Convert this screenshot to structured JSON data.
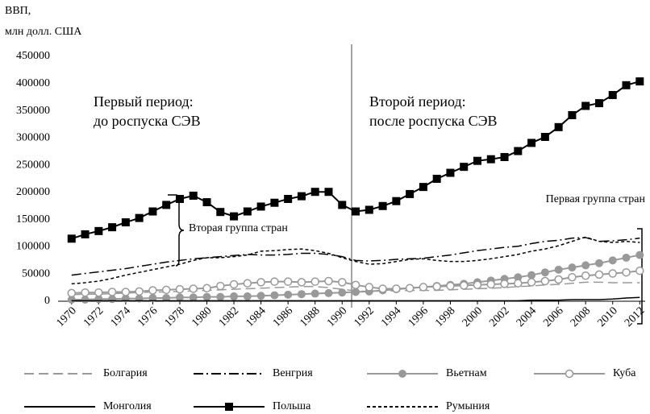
{
  "chart_data": {
    "type": "line",
    "ylabel": [
      "ВВП,",
      "млн долл. США"
    ],
    "x": [
      1970,
      1971,
      1972,
      1973,
      1974,
      1975,
      1976,
      1977,
      1978,
      1979,
      1980,
      1981,
      1982,
      1983,
      1984,
      1985,
      1986,
      1987,
      1988,
      1989,
      1990,
      1991,
      1992,
      1993,
      1994,
      1995,
      1996,
      1997,
      1998,
      1999,
      2000,
      2001,
      2002,
      2003,
      2004,
      2005,
      2006,
      2007,
      2008,
      2009,
      2010,
      2011,
      2012
    ],
    "xlim": [
      1969,
      2012.4
    ],
    "xticks": [
      1970,
      1972,
      1974,
      1976,
      1978,
      1980,
      1982,
      1984,
      1986,
      1988,
      1990,
      1992,
      1994,
      1996,
      1998,
      2000,
      2002,
      2004,
      2006,
      2008,
      2010,
      2012
    ],
    "ylim": [
      0,
      450000
    ],
    "yticks": [
      0,
      50000,
      100000,
      150000,
      200000,
      250000,
      300000,
      350000,
      400000,
      450000
    ],
    "grid": false,
    "legend": "bottom",
    "annotations": {
      "period1": [
        "Первый период:",
        "до роспуска СЭВ"
      ],
      "period2": [
        "Второй период:",
        "после роспуска СЭВ"
      ],
      "group2": "Вторая группа стран",
      "group1": "Первая группа стран"
    },
    "series": [
      {
        "name": "Болгария",
        "color": "#999999",
        "dash": "long",
        "marker": "none",
        "values": [
          12000,
          13000,
          13000,
          14000,
          15000,
          16000,
          17000,
          17000,
          18000,
          19000,
          20000,
          21000,
          22000,
          23000,
          24000,
          25000,
          26000,
          27000,
          27000,
          25000,
          22000,
          19000,
          18000,
          19000,
          19000,
          20000,
          20000,
          20000,
          21000,
          22000,
          23000,
          24000,
          25000,
          27000,
          28000,
          30000,
          31000,
          33000,
          35000,
          35000,
          34000,
          34000,
          34000
        ]
      },
      {
        "name": "Венгрия",
        "color": "#000000",
        "dash": "dashdot",
        "marker": "none",
        "values": [
          48000,
          51000,
          54000,
          57000,
          60000,
          64000,
          68000,
          72000,
          75000,
          78000,
          80000,
          82000,
          84000,
          86000,
          85000,
          85000,
          86000,
          88000,
          88000,
          86000,
          82000,
          75000,
          74000,
          75000,
          77000,
          78000,
          79000,
          82000,
          85000,
          89000,
          93000,
          96000,
          99000,
          101000,
          106000,
          110000,
          112000,
          116000,
          117000,
          110000,
          111000,
          113000,
          116000
        ]
      },
      {
        "name": "Вьетнам",
        "color": "#999999",
        "dash": "solid",
        "marker": "circle",
        "values": [
          3000,
          3000,
          4000,
          4000,
          5000,
          5000,
          6000,
          6000,
          7000,
          7000,
          8000,
          8000,
          9000,
          9000,
          10000,
          11000,
          12000,
          13000,
          14000,
          15000,
          16000,
          17000,
          18000,
          20000,
          22000,
          24000,
          26000,
          28000,
          30000,
          32000,
          35000,
          38000,
          41000,
          44000,
          48000,
          53000,
          58000,
          62000,
          66000,
          70000,
          75000,
          80000,
          85000
        ]
      },
      {
        "name": "Куба",
        "color": "#999999",
        "dash": "solid",
        "marker": "open-circle",
        "values": [
          15000,
          16000,
          16000,
          17000,
          17000,
          18000,
          20000,
          21000,
          22000,
          23000,
          24000,
          28000,
          31000,
          33000,
          35000,
          36000,
          36000,
          35000,
          36000,
          37000,
          35000,
          30000,
          26000,
          23000,
          23000,
          24000,
          26000,
          27000,
          28000,
          29000,
          30000,
          31000,
          32000,
          33000,
          35000,
          37000,
          40000,
          44000,
          47000,
          49000,
          51000,
          53000,
          56000
        ]
      },
      {
        "name": "Монголия",
        "color": "#000000",
        "dash": "solid",
        "marker": "none",
        "values": [
          1000,
          1000,
          1000,
          1000,
          1000,
          1000,
          1000,
          1000,
          1000,
          1000,
          1000,
          1000,
          1000,
          1000,
          1000,
          1000,
          1000,
          1000,
          1000,
          1000,
          1000,
          1000,
          1000,
          1000,
          1000,
          1000,
          1000,
          1000,
          1000,
          1000,
          1000,
          1000,
          1000,
          1000,
          2000,
          2000,
          2000,
          3000,
          3000,
          3000,
          4000,
          6000,
          7000
        ]
      },
      {
        "name": "Польша",
        "color": "#000000",
        "dash": "solid",
        "marker": "square",
        "values": [
          115000,
          123000,
          129000,
          136000,
          145000,
          153000,
          165000,
          177000,
          188000,
          194000,
          182000,
          164000,
          156000,
          165000,
          174000,
          181000,
          188000,
          193000,
          201000,
          201000,
          177000,
          165000,
          168000,
          175000,
          184000,
          197000,
          210000,
          225000,
          236000,
          247000,
          258000,
          261000,
          265000,
          276000,
          291000,
          302000,
          320000,
          342000,
          359000,
          364000,
          379000,
          397000,
          404000
        ]
      },
      {
        "name": "Румыния",
        "color": "#000000",
        "dash": "dotted",
        "marker": "none",
        "values": [
          32000,
          34000,
          37000,
          42000,
          48000,
          53000,
          58000,
          63000,
          68000,
          75000,
          80000,
          80000,
          82000,
          85000,
          92000,
          93000,
          95000,
          96000,
          93000,
          88000,
          80000,
          73000,
          68000,
          69000,
          73000,
          77000,
          78000,
          75000,
          73000,
          73000,
          75000,
          78000,
          82000,
          86000,
          92000,
          96000,
          102000,
          110000,
          118000,
          110000,
          108000,
          110000,
          108000
        ]
      }
    ]
  }
}
